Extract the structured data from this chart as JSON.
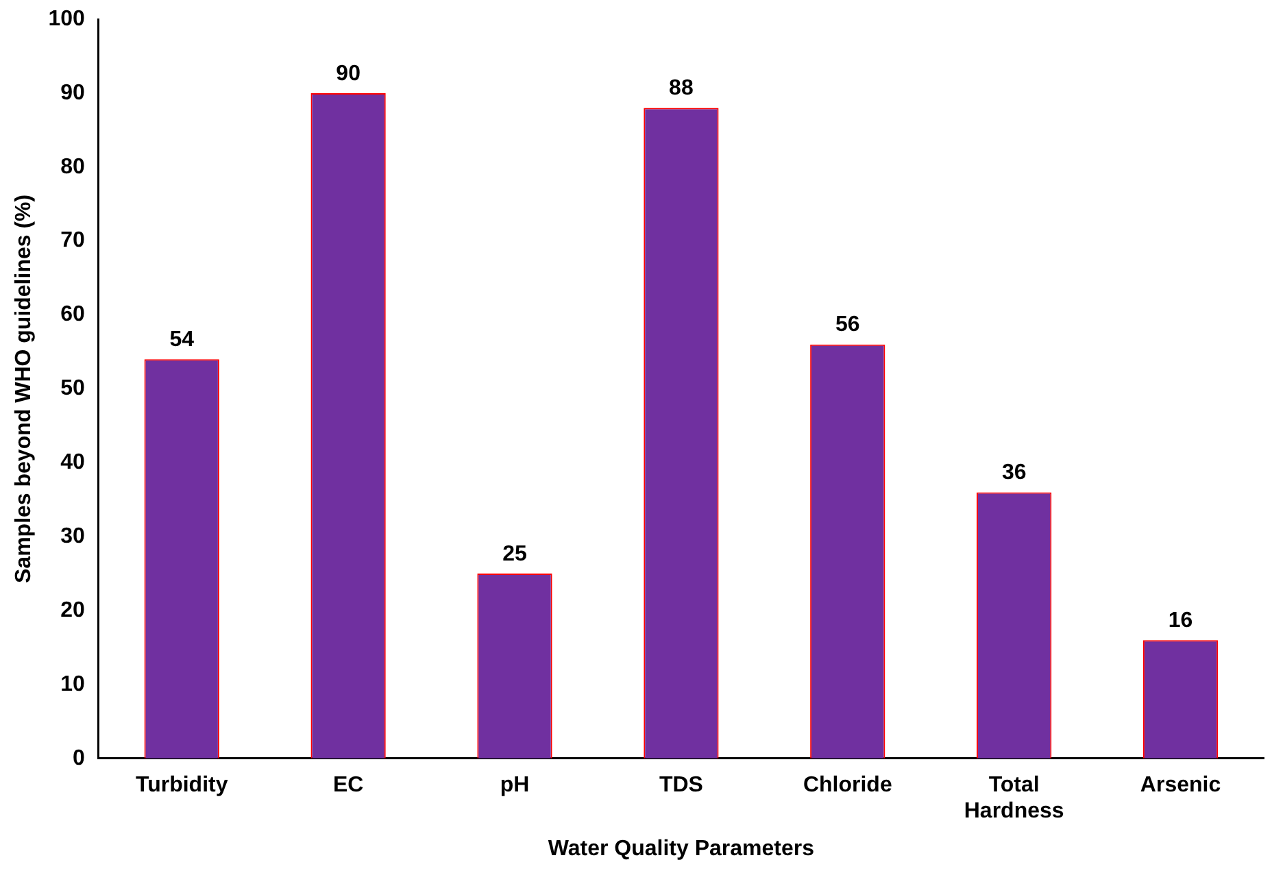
{
  "chart_data": {
    "type": "bar",
    "xlabel": "Water Quality Parameters",
    "ylabel": "Samples beyond WHO guidelines (%)",
    "categories": [
      "Turbidity",
      "EC",
      "pH",
      "TDS",
      "Chloride",
      "Total Hardness",
      "Arsenic"
    ],
    "values": [
      54,
      90,
      25,
      88,
      56,
      36,
      16
    ],
    "color": "#7030a0",
    "ylim": [
      0,
      100
    ],
    "yticks": [
      0,
      10,
      20,
      30,
      40,
      50,
      60,
      70,
      80,
      90,
      100
    ],
    "grid": false,
    "legend": false,
    "data_labels": true
  }
}
